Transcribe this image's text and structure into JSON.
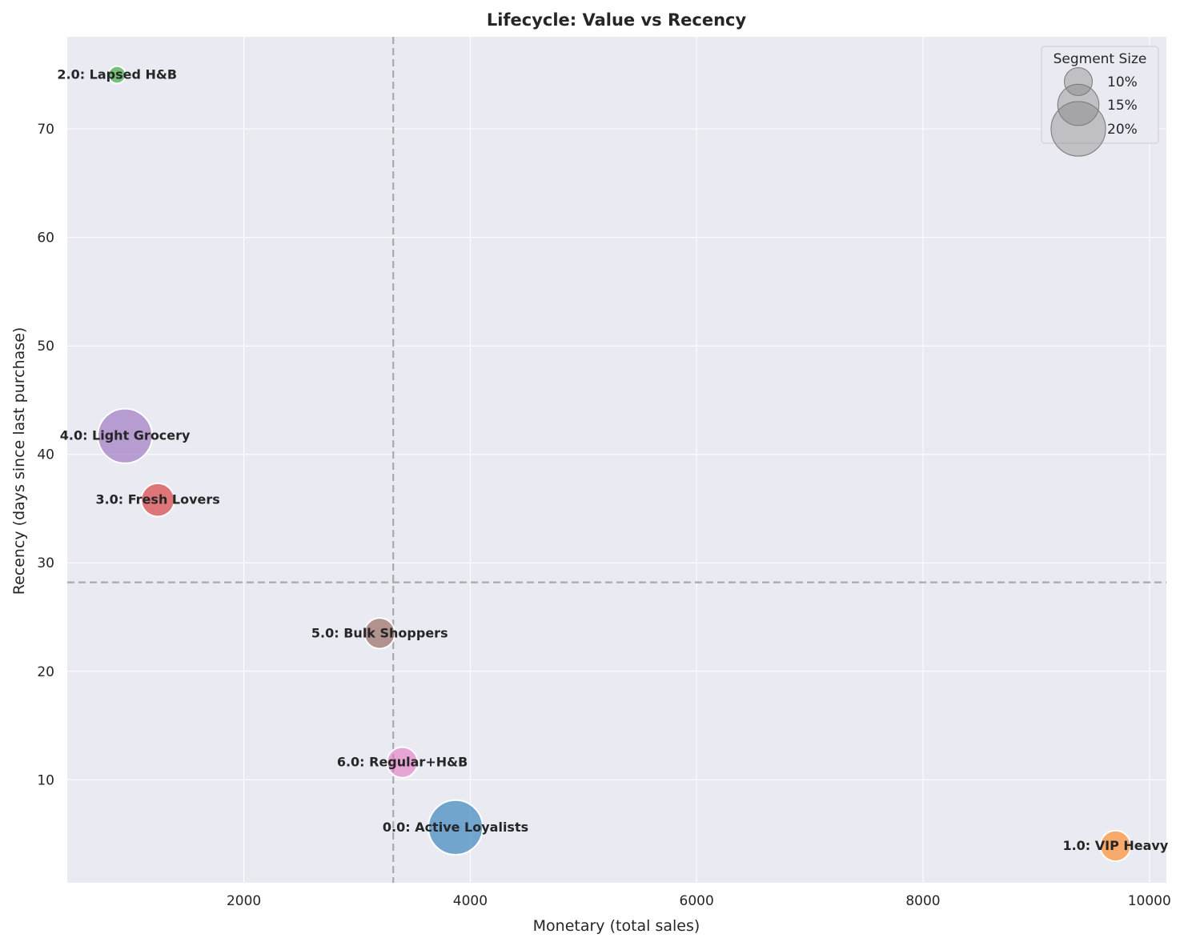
{
  "chart_data": {
    "type": "scatter",
    "title": "Lifecycle: Value vs Recency",
    "xlabel": "Monetary (total sales)",
    "ylabel": "Recency (days since last purchase)",
    "xlim": [
      440,
      10150
    ],
    "ylim": [
      0.5,
      78.5
    ],
    "xticks": [
      2000,
      4000,
      6000,
      8000,
      10000
    ],
    "yticks": [
      10,
      20,
      30,
      40,
      50,
      60,
      70
    ],
    "grid": true,
    "reference_lines": {
      "x": 3320,
      "y": 28.2
    },
    "legend": {
      "title": "Segment Size",
      "placement": "top-right",
      "entries": [
        {
          "label": "10%",
          "size_pct": 10
        },
        {
          "label": "15%",
          "size_pct": 15
        },
        {
          "label": "20%",
          "size_pct": 20
        }
      ]
    },
    "points": [
      {
        "label": "0.0: Active Loyalists",
        "x": 3870,
        "y": 5.6,
        "size_pct": 20,
        "color": "#1f77b4"
      },
      {
        "label": "1.0: VIP Heavy",
        "x": 9700,
        "y": 3.9,
        "size_pct": 11,
        "color": "#ff7f0e"
      },
      {
        "label": "2.0: Lapsed H&B",
        "x": 880,
        "y": 75.0,
        "size_pct": 6,
        "color": "#2ca02c"
      },
      {
        "label": "3.0: Fresh Lovers",
        "x": 1240,
        "y": 35.8,
        "size_pct": 12,
        "color": "#d62728"
      },
      {
        "label": "4.0: Light Grocery",
        "x": 950,
        "y": 41.7,
        "size_pct": 20,
        "color": "#9467bd"
      },
      {
        "label": "5.0: Bulk Shoppers",
        "x": 3200,
        "y": 23.5,
        "size_pct": 11,
        "color": "#8c564b"
      },
      {
        "label": "6.0: Regular+H&B",
        "x": 3400,
        "y": 11.6,
        "size_pct": 11,
        "color": "#e377c2"
      }
    ]
  }
}
